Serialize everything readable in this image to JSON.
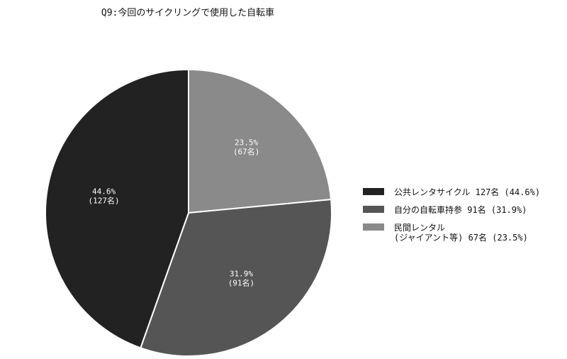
{
  "chart_data": {
    "type": "pie",
    "title": "Q9:今回のサイクリングで使用した自転車",
    "unit": "名",
    "legend_position": "right",
    "slices": [
      {
        "name": "公共レンタサイクル",
        "legend_lines": [
          "公共レンタサイクル 127名 (44.6%)"
        ],
        "value": 127,
        "percent": 44.6,
        "percent_label": "44.6%",
        "count_label": "(127名)",
        "color": "#222222",
        "label_color": "#ffffff"
      },
      {
        "name": "自分の自転車持参",
        "legend_lines": [
          "自分の自転車持参 91名 (31.9%)"
        ],
        "value": 91,
        "percent": 31.9,
        "percent_label": "31.9%",
        "count_label": "(91名)",
        "color": "#555555",
        "label_color": "#ffffff"
      },
      {
        "name": "民間レンタル(ジャイアント等)",
        "legend_lines": [
          "民間レンタル",
          "(ジャイアント等) 67名 (23.5%)"
        ],
        "value": 67,
        "percent": 23.5,
        "percent_label": "23.5%",
        "count_label": "(67名)",
        "color": "#8a8a8a",
        "label_color": "#ffffff"
      }
    ]
  }
}
